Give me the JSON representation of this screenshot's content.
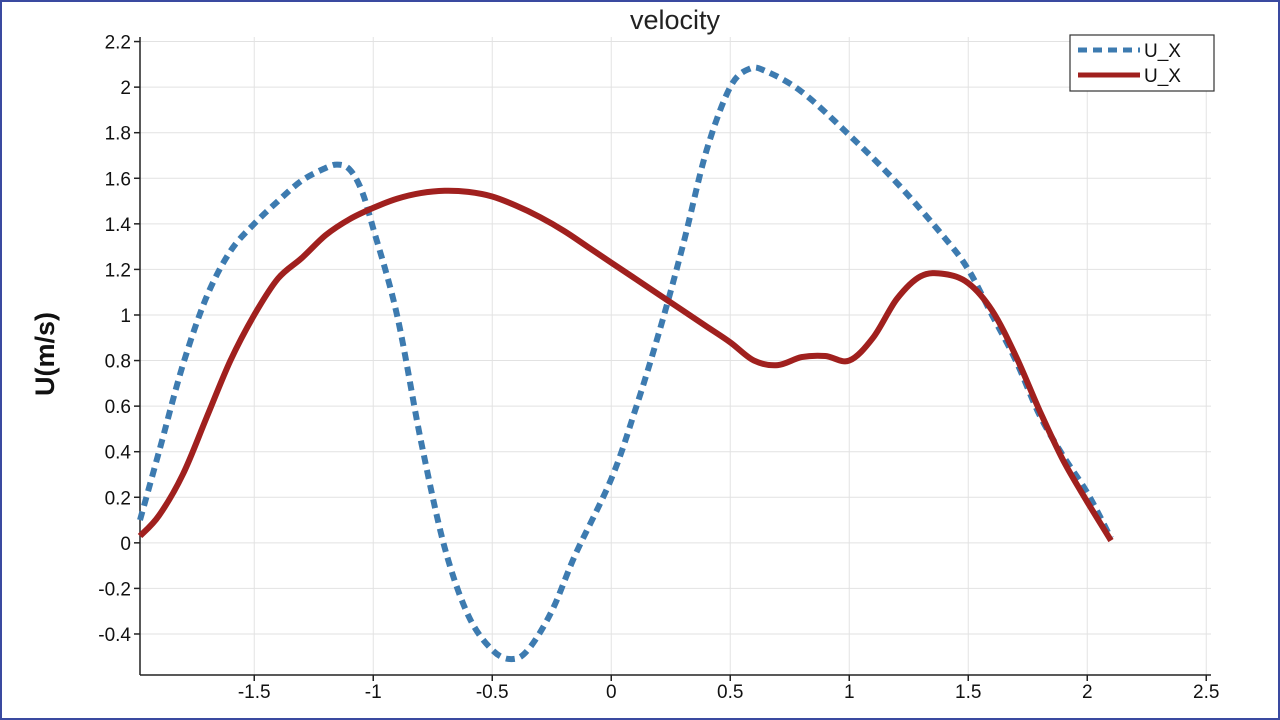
{
  "chart_data": {
    "type": "line",
    "title": "velocity",
    "xlabel": "",
    "ylabel": "U(m/s)",
    "xlim": [
      -1.98,
      2.52
    ],
    "ylim": [
      -0.58,
      2.22
    ],
    "x_ticks": [
      -1.5,
      -1,
      -0.5,
      0,
      0.5,
      1,
      1.5,
      2,
      2.5
    ],
    "x_tick_labels": [
      "-1.5",
      "-1",
      "-0.5",
      "0",
      "0.5",
      "1",
      "1.5",
      "2",
      "2.5"
    ],
    "y_ticks": [
      -0.4,
      -0.2,
      0,
      0.2,
      0.4,
      0.6,
      0.8,
      1,
      1.2,
      1.4,
      1.6,
      1.8,
      2,
      2.2
    ],
    "y_tick_labels": [
      "-0.4",
      "-0.2",
      "0",
      "0.2",
      "0.4",
      "0.6",
      "0.8",
      "1",
      "1.2",
      "1.4",
      "1.6",
      "1.8",
      "2",
      "2.2"
    ],
    "grid": true,
    "legend_position": "top-right",
    "series": [
      {
        "name": "U_X",
        "color": "#3d7bb0",
        "style": "dashed",
        "points": [
          [
            -1.98,
            0.1
          ],
          [
            -1.9,
            0.4
          ],
          [
            -1.8,
            0.78
          ],
          [
            -1.7,
            1.08
          ],
          [
            -1.6,
            1.28
          ],
          [
            -1.5,
            1.4
          ],
          [
            -1.4,
            1.5
          ],
          [
            -1.3,
            1.59
          ],
          [
            -1.2,
            1.645
          ],
          [
            -1.15,
            1.66
          ],
          [
            -1.1,
            1.64
          ],
          [
            -1.05,
            1.55
          ],
          [
            -1.0,
            1.38
          ],
          [
            -0.9,
            1.0
          ],
          [
            -0.8,
            0.45
          ],
          [
            -0.7,
            -0.02
          ],
          [
            -0.6,
            -0.32
          ],
          [
            -0.5,
            -0.47
          ],
          [
            -0.42,
            -0.51
          ],
          [
            -0.35,
            -0.47
          ],
          [
            -0.25,
            -0.3
          ],
          [
            -0.15,
            -0.05
          ],
          [
            0.0,
            0.28
          ],
          [
            0.1,
            0.58
          ],
          [
            0.2,
            0.92
          ],
          [
            0.3,
            1.3
          ],
          [
            0.4,
            1.72
          ],
          [
            0.5,
            2.0
          ],
          [
            0.58,
            2.08
          ],
          [
            0.65,
            2.07
          ],
          [
            0.8,
            1.98
          ],
          [
            1.0,
            1.79
          ],
          [
            1.2,
            1.58
          ],
          [
            1.4,
            1.34
          ],
          [
            1.5,
            1.2
          ],
          [
            1.6,
            1.0
          ],
          [
            1.7,
            0.8
          ],
          [
            1.8,
            0.56
          ],
          [
            1.9,
            0.38
          ],
          [
            2.0,
            0.22
          ],
          [
            2.1,
            0.02
          ]
        ]
      },
      {
        "name": "U_X",
        "color": "#a0201e",
        "style": "solid",
        "points": [
          [
            -1.98,
            0.03
          ],
          [
            -1.9,
            0.12
          ],
          [
            -1.8,
            0.3
          ],
          [
            -1.7,
            0.55
          ],
          [
            -1.6,
            0.8
          ],
          [
            -1.5,
            1.0
          ],
          [
            -1.4,
            1.16
          ],
          [
            -1.3,
            1.25
          ],
          [
            -1.2,
            1.35
          ],
          [
            -1.1,
            1.42
          ],
          [
            -1.0,
            1.47
          ],
          [
            -0.9,
            1.51
          ],
          [
            -0.8,
            1.535
          ],
          [
            -0.7,
            1.545
          ],
          [
            -0.6,
            1.54
          ],
          [
            -0.5,
            1.52
          ],
          [
            -0.4,
            1.48
          ],
          [
            -0.3,
            1.43
          ],
          [
            -0.2,
            1.37
          ],
          [
            -0.1,
            1.3
          ],
          [
            0.0,
            1.23
          ],
          [
            0.1,
            1.16
          ],
          [
            0.2,
            1.09
          ],
          [
            0.3,
            1.02
          ],
          [
            0.4,
            0.95
          ],
          [
            0.5,
            0.88
          ],
          [
            0.6,
            0.8
          ],
          [
            0.7,
            0.78
          ],
          [
            0.8,
            0.815
          ],
          [
            0.9,
            0.82
          ],
          [
            1.0,
            0.8
          ],
          [
            1.1,
            0.9
          ],
          [
            1.2,
            1.07
          ],
          [
            1.3,
            1.17
          ],
          [
            1.4,
            1.18
          ],
          [
            1.5,
            1.14
          ],
          [
            1.6,
            1.02
          ],
          [
            1.7,
            0.82
          ],
          [
            1.8,
            0.58
          ],
          [
            1.9,
            0.36
          ],
          [
            2.0,
            0.18
          ],
          [
            2.1,
            0.01
          ]
        ]
      }
    ]
  }
}
